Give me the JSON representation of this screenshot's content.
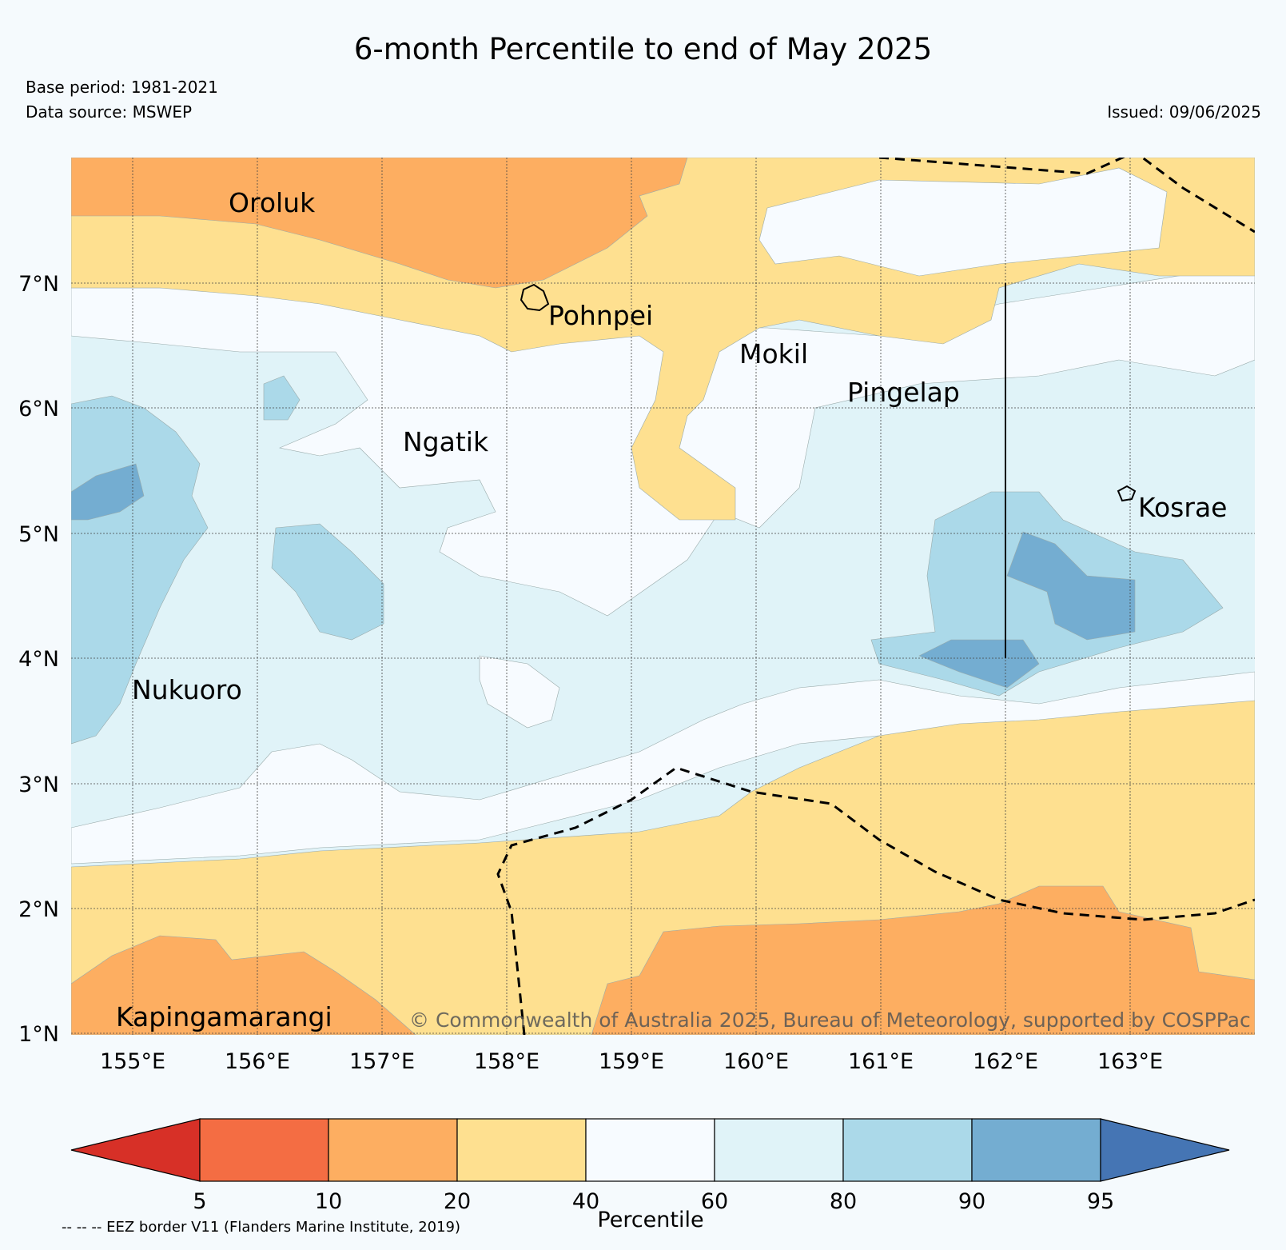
{
  "header": {
    "title": "6-month Percentile to end of May 2025",
    "base_period": "Base period: 1981-2021",
    "data_source": "Data source: MSWEP",
    "issued": "Issued: 09/06/2025"
  },
  "map": {
    "lon_range": [
      154.5,
      164
    ],
    "lat_range": [
      1,
      8
    ],
    "lon_ticks": [
      "155°E",
      "156°E",
      "157°E",
      "158°E",
      "159°E",
      "160°E",
      "161°E",
      "162°E",
      "163°E"
    ],
    "lat_ticks": [
      "1°N",
      "2°N",
      "3°N",
      "4°N",
      "5°N",
      "6°N",
      "7°N"
    ],
    "islands": [
      {
        "name": "Oroluk",
        "lon": 155.75,
        "lat": 7.7
      },
      {
        "name": "Pohnpei",
        "lon": 158.2,
        "lat": 6.9
      },
      {
        "name": "Mokil",
        "lon": 159.8,
        "lat": 6.6
      },
      {
        "name": "Pingelap",
        "lon": 160.7,
        "lat": 6.2
      },
      {
        "name": "Ngatik",
        "lon": 157.15,
        "lat": 5.8
      },
      {
        "name": "Kosrae",
        "lon": 163.0,
        "lat": 5.3
      },
      {
        "name": "Nukuoro",
        "lon": 154.95,
        "lat": 3.85
      },
      {
        "name": "Kapingamarangi",
        "lon": 154.8,
        "lat": 1.25
      }
    ],
    "copyright": "© Commonwealth of Australia 2025, Bureau of Meteorology, supported by COSPPac",
    "colors": {
      "p0_5": "#d73027",
      "p5_10": "#f46d43",
      "p10_20": "#fdae61",
      "p20_40": "#fee090",
      "p40_60": "#f7fbff",
      "p60_80": "#e0f3f8",
      "p80_90": "#abd9e9",
      "p90_95": "#74add1",
      "p95_100": "#4575b4"
    }
  },
  "colorbar": {
    "ticks": [
      "5",
      "10",
      "20",
      "40",
      "60",
      "80",
      "90",
      "95"
    ],
    "label": "Percentile"
  },
  "legend_note": "-- -- -- EEZ border V11 (Flanders Marine Institute, 2019)"
}
